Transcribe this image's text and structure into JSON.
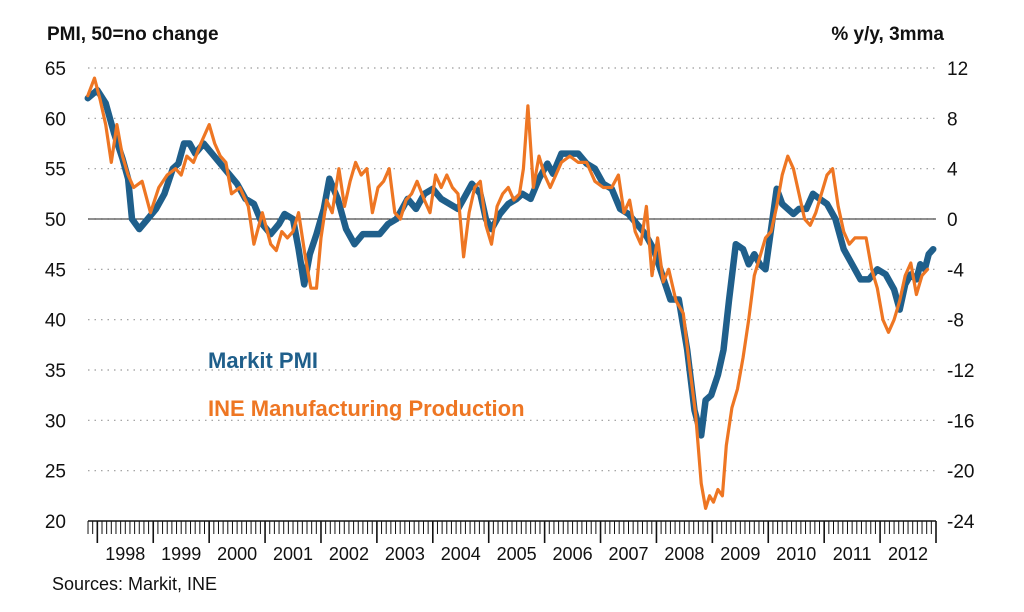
{
  "chart_data": {
    "type": "line",
    "left_axis_label": "PMI, 50=no change",
    "right_axis_label": "% y/y, 3mma",
    "left_ylim": [
      20,
      65
    ],
    "left_ticks": [
      20,
      25,
      30,
      35,
      40,
      45,
      50,
      55,
      60,
      65
    ],
    "right_ylim": [
      -24,
      12
    ],
    "right_ticks": [
      -24,
      -20,
      -16,
      -12,
      -8,
      -4,
      0,
      4,
      8,
      12
    ],
    "x_range": [
      1997.833,
      2013.0
    ],
    "x_tick_labels": [
      "1998",
      "1999",
      "2000",
      "2001",
      "2002",
      "2003",
      "2004",
      "2005",
      "2006",
      "2007",
      "2008",
      "2009",
      "2010",
      "2011",
      "2012"
    ],
    "grid": "horizontal dotted",
    "reference_line": {
      "axis": "right",
      "value": 0
    },
    "source": "Sources: Markit, INE",
    "series": [
      {
        "name": "Markit PMI",
        "axis": "left",
        "color": "#1f5f8b",
        "x": [
          1997.83,
          1998.0,
          1998.15,
          1998.3,
          1998.45,
          1998.55,
          1998.62,
          1998.75,
          1998.9,
          1999.05,
          1999.2,
          1999.35,
          1999.45,
          1999.55,
          1999.65,
          1999.75,
          1999.9,
          2000.05,
          2000.2,
          2000.35,
          2000.5,
          2000.65,
          2000.8,
          2000.95,
          2001.1,
          2001.25,
          2001.35,
          2001.5,
          2001.6,
          2001.7,
          2001.8,
          2001.92,
          2002.05,
          2002.15,
          2002.3,
          2002.45,
          2002.6,
          2002.75,
          2002.9,
          2003.05,
          2003.2,
          2003.35,
          2003.45,
          2003.55,
          2003.7,
          2003.85,
          2004.0,
          2004.15,
          2004.3,
          2004.45,
          2004.55,
          2004.7,
          2004.85,
          2004.95,
          2005.05,
          2005.2,
          2005.35,
          2005.5,
          2005.6,
          2005.75,
          2005.9,
          2006.05,
          2006.15,
          2006.3,
          2006.45,
          2006.6,
          2006.75,
          2006.9,
          2007.05,
          2007.2,
          2007.35,
          2007.5,
          2007.65,
          2007.8,
          2007.95,
          2008.1,
          2008.25,
          2008.4,
          2008.55,
          2008.68,
          2008.8,
          2008.88,
          2008.98,
          2009.1,
          2009.2,
          2009.3,
          2009.42,
          2009.55,
          2009.65,
          2009.75,
          2009.85,
          2009.95,
          2010.05,
          2010.15,
          2010.25,
          2010.35,
          2010.45,
          2010.55,
          2010.68,
          2010.8,
          2010.92,
          2011.05,
          2011.2,
          2011.35,
          2011.5,
          2011.65,
          2011.8,
          2011.95,
          2012.1,
          2012.25,
          2012.35,
          2012.45,
          2012.55,
          2012.65,
          2012.72,
          2012.8,
          2012.87,
          2012.95
        ],
        "values": [
          62.0,
          62.8,
          61.5,
          58.5,
          56.0,
          54.0,
          50.0,
          49.0,
          50.0,
          51.0,
          52.5,
          55.0,
          55.5,
          57.5,
          57.5,
          56.5,
          57.5,
          56.5,
          55.5,
          54.5,
          53.5,
          52.0,
          51.5,
          49.5,
          48.5,
          49.5,
          50.5,
          50.0,
          47.0,
          43.5,
          46.5,
          48.5,
          51.0,
          54.0,
          52.0,
          49.0,
          47.5,
          48.5,
          48.5,
          48.5,
          49.5,
          50.0,
          51.0,
          52.0,
          51.0,
          52.5,
          53.0,
          52.0,
          51.5,
          51.0,
          52.0,
          53.5,
          52.5,
          50.0,
          49.0,
          50.5,
          51.5,
          52.0,
          52.5,
          52.0,
          54.0,
          55.5,
          54.5,
          56.5,
          56.5,
          56.5,
          55.5,
          55.0,
          53.5,
          53.0,
          51.0,
          50.5,
          49.5,
          48.5,
          47.0,
          44.5,
          42.0,
          42.0,
          37.0,
          31.0,
          28.5,
          32.0,
          32.5,
          34.5,
          37.0,
          42.0,
          47.5,
          47.0,
          45.5,
          46.5,
          45.5,
          45.0,
          49.0,
          53.0,
          51.5,
          51.0,
          50.5,
          51.0,
          51.0,
          52.5,
          52.0,
          51.5,
          50.0,
          47.0,
          45.5,
          44.0,
          44.0,
          45.0,
          44.5,
          43.0,
          41.0,
          43.5,
          44.5,
          44.0,
          45.5,
          45.0,
          46.5,
          47.0
        ]
      },
      {
        "name": "INE Manufacturing Production",
        "axis": "right",
        "color": "#ee7623",
        "x": [
          1997.83,
          1997.95,
          1998.05,
          1998.15,
          1998.25,
          1998.35,
          1998.45,
          1998.55,
          1998.65,
          1998.8,
          1998.95,
          1999.1,
          1999.25,
          1999.4,
          1999.5,
          1999.6,
          1999.72,
          1999.85,
          2000.0,
          2000.1,
          2000.2,
          2000.3,
          2000.4,
          2000.55,
          2000.7,
          2000.8,
          2000.95,
          2001.1,
          2001.2,
          2001.3,
          2001.4,
          2001.5,
          2001.6,
          2001.72,
          2001.82,
          2001.92,
          2002.0,
          2002.1,
          2002.2,
          2002.32,
          2002.42,
          2002.52,
          2002.62,
          2002.72,
          2002.82,
          2002.92,
          2003.02,
          2003.12,
          2003.22,
          2003.32,
          2003.42,
          2003.52,
          2003.62,
          2003.72,
          2003.85,
          2003.95,
          2004.05,
          2004.15,
          2004.25,
          2004.35,
          2004.45,
          2004.55,
          2004.65,
          2004.75,
          2004.85,
          2004.95,
          2005.05,
          2005.15,
          2005.25,
          2005.35,
          2005.45,
          2005.55,
          2005.62,
          2005.7,
          2005.8,
          2005.9,
          2006.0,
          2006.1,
          2006.2,
          2006.3,
          2006.45,
          2006.6,
          2006.75,
          2006.9,
          2007.05,
          2007.2,
          2007.32,
          2007.42,
          2007.52,
          2007.62,
          2007.72,
          2007.82,
          2007.92,
          2008.02,
          2008.12,
          2008.22,
          2008.35,
          2008.48,
          2008.6,
          2008.7,
          2008.8,
          2008.88,
          2008.95,
          2009.02,
          2009.1,
          2009.18,
          2009.25,
          2009.35,
          2009.45,
          2009.55,
          2009.65,
          2009.75,
          2009.85,
          2009.95,
          2010.05,
          2010.15,
          2010.25,
          2010.35,
          2010.45,
          2010.55,
          2010.65,
          2010.75,
          2010.85,
          2010.95,
          2011.05,
          2011.15,
          2011.25,
          2011.35,
          2011.45,
          2011.55,
          2011.65,
          2011.75,
          2011.85,
          2011.95,
          2012.05,
          2012.15,
          2012.25,
          2012.35,
          2012.45,
          2012.55,
          2012.65,
          2012.75,
          2012.85
        ],
        "values": [
          9.8,
          11.2,
          9.5,
          7.5,
          4.5,
          7.5,
          5.0,
          3.5,
          2.5,
          3.0,
          0.5,
          2.5,
          3.5,
          4.0,
          3.5,
          5.0,
          4.5,
          6.0,
          7.5,
          6.0,
          5.0,
          4.5,
          2.0,
          2.5,
          1.0,
          -2.0,
          0.5,
          -2.0,
          -2.5,
          -1.0,
          -1.5,
          -1.0,
          0.5,
          -3.0,
          -5.5,
          -5.5,
          -1.5,
          1.5,
          0.5,
          4.0,
          1.0,
          3.0,
          4.5,
          3.5,
          4.0,
          0.5,
          2.5,
          3.0,
          4.0,
          0.5,
          0.0,
          1.5,
          2.0,
          3.0,
          1.5,
          0.5,
          3.5,
          2.5,
          3.5,
          2.5,
          2.0,
          -3.0,
          0.5,
          2.5,
          3.0,
          -0.5,
          -2.0,
          1.0,
          2.0,
          2.5,
          1.5,
          2.0,
          4.0,
          9.0,
          2.5,
          5.0,
          3.5,
          2.5,
          3.5,
          4.5,
          5.0,
          4.5,
          4.5,
          3.0,
          2.5,
          2.5,
          3.5,
          0.5,
          1.5,
          -1.0,
          -2.0,
          1.0,
          -4.5,
          -1.5,
          -5.0,
          -4.0,
          -6.5,
          -7.5,
          -12.0,
          -15.5,
          -21.0,
          -23.0,
          -22.0,
          -22.5,
          -21.5,
          -22.0,
          -18.0,
          -15.0,
          -13.5,
          -11.0,
          -8.0,
          -4.5,
          -3.0,
          -1.5,
          -1.0,
          1.0,
          3.5,
          5.0,
          4.0,
          2.0,
          0.0,
          -0.5,
          0.5,
          2.0,
          3.5,
          4.0,
          1.0,
          -1.0,
          -2.0,
          -1.5,
          -1.5,
          -1.5,
          -4.0,
          -5.5,
          -8.0,
          -9.0,
          -8.0,
          -6.5,
          -4.5,
          -3.5,
          -6.0,
          -4.5,
          -4.0
        ]
      }
    ]
  }
}
